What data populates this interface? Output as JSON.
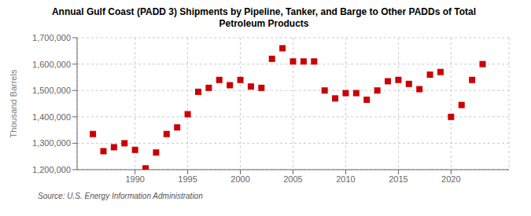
{
  "chart_data": {
    "type": "scatter",
    "title": "Annual Gulf Coast (PADD 3) Shipments by Pipeline, Tanker, and Barge to Other PADDs of Total\nPetroleum Products",
    "y_label": "Thousand Barrels",
    "annotations": [
      "Source: U.S. Energy Information Administration"
    ],
    "x": [
      1986,
      1987,
      1988,
      1989,
      1990,
      1991,
      1992,
      1993,
      1994,
      1995,
      1996,
      1997,
      1998,
      1999,
      2000,
      2001,
      2002,
      2003,
      2004,
      2005,
      2006,
      2007,
      2008,
      2009,
      2010,
      2011,
      2012,
      2013,
      2014,
      2015,
      2016,
      2017,
      2018,
      2019,
      2020,
      2021,
      2022,
      2023
    ],
    "values": [
      1335000,
      1270000,
      1285000,
      1300000,
      1275000,
      1205000,
      1265000,
      1335000,
      1360000,
      1410000,
      1495000,
      1510000,
      1540000,
      1520000,
      1540000,
      1515000,
      1510000,
      1620000,
      1660000,
      1610000,
      1610000,
      1610000,
      1500000,
      1470000,
      1490000,
      1490000,
      1465000,
      1500000,
      1535000,
      1540000,
      1525000,
      1505000,
      1560000,
      1570000,
      1400000,
      1445000,
      1540000,
      1600000
    ],
    "color": "#cc0000",
    "marker": "square",
    "xlim": [
      1984.5,
      2025.5
    ],
    "xticks": [
      1990,
      1995,
      2000,
      2005,
      2010,
      2015,
      2020
    ],
    "ylim": [
      1200000,
      1700000
    ],
    "yticks": [
      {
        "value": 1200000,
        "label": "1,200,000"
      },
      {
        "value": 1300000,
        "label": "1,300,000"
      },
      {
        "value": 1400000,
        "label": "1,400,000"
      },
      {
        "value": 1500000,
        "label": "1,500,000"
      },
      {
        "value": 1600000,
        "label": "1,600,000"
      },
      {
        "value": 1700000,
        "label": "1,700,000"
      }
    ],
    "grid": true
  }
}
